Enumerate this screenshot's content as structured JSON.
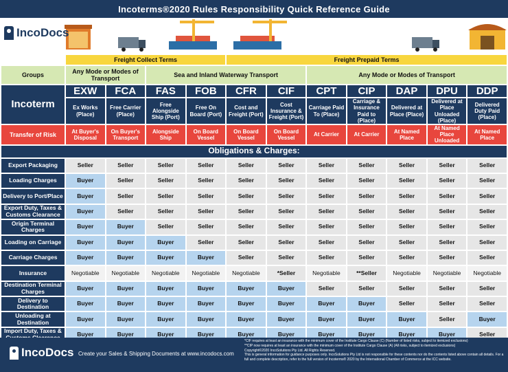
{
  "title": "Incoterms®2020 Rules Responsibility Quick Reference Guide",
  "brand": "IncoDocs",
  "banner_groups": {
    "collect": "Freight Collect Terms",
    "prepaid": "Freight Prepaid Terms"
  },
  "groups_label": "Groups",
  "modes": {
    "any1": "Any Mode or Modes of Transport",
    "sea": "Sea and Inland Waterway Transport",
    "any2": "Any Mode or Modes of Transport"
  },
  "incoterm_label": "Incoterm",
  "terms": [
    {
      "code": "EXW",
      "desc": "Ex Works (Place)",
      "risk": "At Buyer's Disposal"
    },
    {
      "code": "FCA",
      "desc": "Free Carrier (Place)",
      "risk": "On Buyer's Transport"
    },
    {
      "code": "FAS",
      "desc": "Free Alongside Ship (Port)",
      "risk": "Alongside Ship"
    },
    {
      "code": "FOB",
      "desc": "Free On Board (Port)",
      "risk": "On Board Vessel"
    },
    {
      "code": "CFR",
      "desc": "Cost and Freight (Port)",
      "risk": "On Board Vessel"
    },
    {
      "code": "CIF",
      "desc": "Cost Insurance & Freight (Port)",
      "risk": "On Board Vessel"
    },
    {
      "code": "CPT",
      "desc": "Carriage Paid To (Place)",
      "risk": "At Carrier"
    },
    {
      "code": "CIP",
      "desc": "Carriage & Insurance Paid to (Place)",
      "risk": "At Carrier"
    },
    {
      "code": "DAP",
      "desc": "Delivered at Place (Place)",
      "risk": "At Named Place"
    },
    {
      "code": "DPU",
      "desc": "Delivered at Place Unloaded (Place)",
      "risk": "At Named Place Unloaded"
    },
    {
      "code": "DDP",
      "desc": "Delivered Duty Paid (Place)",
      "risk": "At Named Place"
    }
  ],
  "risk_label": "Transfer of Risk",
  "obligations_title": "Obligations & Charges:",
  "rows": [
    {
      "label": "Export Packaging",
      "cells": [
        "Seller",
        "Seller",
        "Seller",
        "Seller",
        "Seller",
        "Seller",
        "Seller",
        "Seller",
        "Seller",
        "Seller",
        "Seller"
      ]
    },
    {
      "label": "Loading Charges",
      "cells": [
        "Buyer",
        "Seller",
        "Seller",
        "Seller",
        "Seller",
        "Seller",
        "Seller",
        "Seller",
        "Seller",
        "Seller",
        "Seller"
      ]
    },
    {
      "label": "Delivery to Port/Place",
      "cells": [
        "Buyer",
        "Seller",
        "Seller",
        "Seller",
        "Seller",
        "Seller",
        "Seller",
        "Seller",
        "Seller",
        "Seller",
        "Seller"
      ]
    },
    {
      "label": "Export Duty, Taxes & Customs Clearance",
      "cells": [
        "Buyer",
        "Seller",
        "Seller",
        "Seller",
        "Seller",
        "Seller",
        "Seller",
        "Seller",
        "Seller",
        "Seller",
        "Seller"
      ]
    },
    {
      "label": "Origin Terminal Charges",
      "cells": [
        "Buyer",
        "Buyer",
        "Seller",
        "Seller",
        "Seller",
        "Seller",
        "Seller",
        "Seller",
        "Seller",
        "Seller",
        "Seller"
      ]
    },
    {
      "label": "Loading on Carriage",
      "cells": [
        "Buyer",
        "Buyer",
        "Buyer",
        "Seller",
        "Seller",
        "Seller",
        "Seller",
        "Seller",
        "Seller",
        "Seller",
        "Seller"
      ]
    },
    {
      "label": "Carriage Charges",
      "cells": [
        "Buyer",
        "Buyer",
        "Buyer",
        "Buyer",
        "Seller",
        "Seller",
        "Seller",
        "Seller",
        "Seller",
        "Seller",
        "Seller"
      ]
    },
    {
      "label": "Insurance",
      "cells": [
        "Negotiable",
        "Negotiable",
        "Negotiable",
        "Negotiable",
        "Negotiable",
        "*Seller",
        "Negotiable",
        "**Seller",
        "Negotiable",
        "Negotiable",
        "Negotiable"
      ]
    },
    {
      "label": "Destination Terminal Charges",
      "cells": [
        "Buyer",
        "Buyer",
        "Buyer",
        "Buyer",
        "Buyer",
        "Buyer",
        "Seller",
        "Seller",
        "Seller",
        "Seller",
        "Seller"
      ]
    },
    {
      "label": "Delivery to Destination",
      "cells": [
        "Buyer",
        "Buyer",
        "Buyer",
        "Buyer",
        "Buyer",
        "Buyer",
        "Buyer",
        "Buyer",
        "Seller",
        "Seller",
        "Seller"
      ]
    },
    {
      "label": "Unloading at Destination",
      "cells": [
        "Buyer",
        "Buyer",
        "Buyer",
        "Buyer",
        "Buyer",
        "Buyer",
        "Buyer",
        "Buyer",
        "Buyer",
        "Seller",
        "Buyer"
      ]
    },
    {
      "label": "Import Duty, Taxes & Customs Clearance",
      "cells": [
        "Buyer",
        "Buyer",
        "Buyer",
        "Buyer",
        "Buyer",
        "Buyer",
        "Buyer",
        "Buyer",
        "Buyer",
        "Buyer",
        "Seller"
      ]
    }
  ],
  "footer": {
    "tagline": "Create your Sales & Shipping Documents at www.incodocs.com",
    "notes": [
      "*CIF requires at least an insurance with the minimum cover of the Institute Cargo Clause (C) (Number of listed risks, subject to itemized exclusions)",
      "**CIP now requires at least an insurance with the minimum cover of the Institute Cargo Clause (A) (All risks, subject to itemized exclusions)",
      "Copyright©2020 IncoSolutions Pty Ltd. All Rights Reserved.",
      "This is general information for guidance purposes only. IncoSolutions Pty Ltd is not responsible for these contents nor do the contents listed above contain all details. For a full and complete description, refer to the full version of Incoterms® 2020 by the International Chamber of Commerce at the ICC website."
    ]
  },
  "colors": {
    "navy": "#1e3a5f",
    "yellow": "#f8d63e",
    "green": "#d6e8b3",
    "red": "#e8463d",
    "buyer": "#b6d4ee",
    "seller": "#e6e6e6"
  }
}
